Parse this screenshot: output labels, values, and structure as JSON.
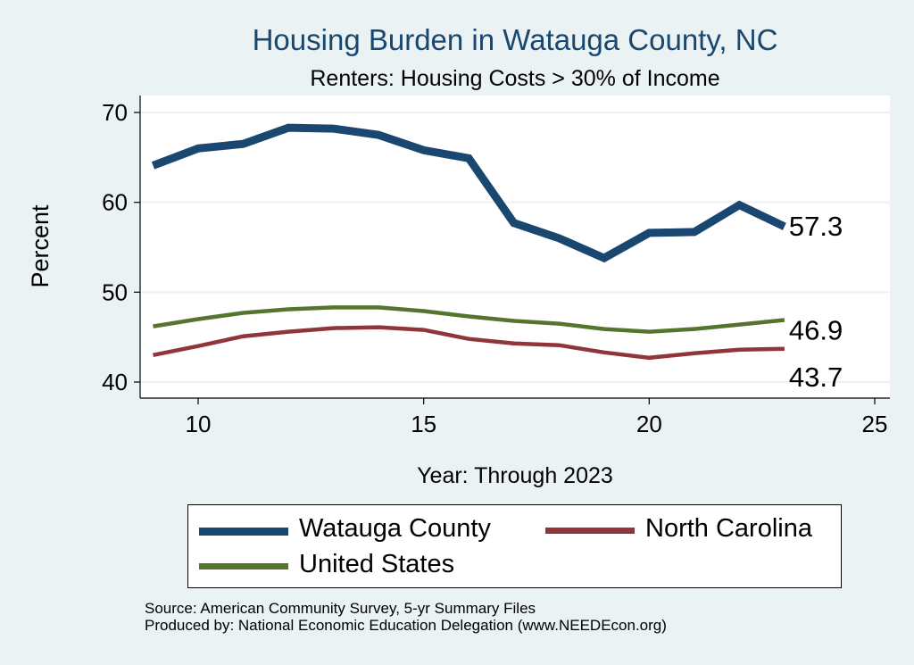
{
  "chart_data": {
    "type": "line",
    "title": "Housing Burden in Watauga County, NC",
    "subtitle": "Renters: Housing Costs > 30% of Income",
    "xlabel": "Year: Through 2023",
    "ylabel": "Percent",
    "xlim": [
      8.7,
      25
    ],
    "ylim": [
      38.5,
      71
    ],
    "xticks": [
      10,
      15,
      20,
      25
    ],
    "yticks": [
      40,
      50,
      60,
      70
    ],
    "grid": true,
    "x": [
      9,
      10,
      11,
      12,
      13,
      14,
      15,
      16,
      17,
      18,
      19,
      20,
      21,
      22,
      23
    ],
    "series": [
      {
        "name": "Watauga County",
        "color": "#1a476f",
        "values": [
          64.1,
          66.0,
          66.5,
          68.3,
          68.2,
          67.5,
          65.8,
          64.9,
          57.7,
          56.0,
          53.8,
          56.6,
          56.7,
          59.7,
          57.3
        ],
        "end_label": "57.3"
      },
      {
        "name": "United States",
        "color": "#55752f",
        "values": [
          46.2,
          47.0,
          47.7,
          48.1,
          48.3,
          48.3,
          47.9,
          47.3,
          46.8,
          46.5,
          45.9,
          45.6,
          45.9,
          46.4,
          46.9
        ],
        "end_label": "46.9"
      },
      {
        "name": "North Carolina",
        "color": "#90353b",
        "values": [
          43.0,
          44.0,
          45.1,
          45.6,
          46.0,
          46.1,
          45.8,
          44.8,
          44.3,
          44.1,
          43.3,
          42.7,
          43.2,
          43.6,
          43.7
        ],
        "end_label": "43.7"
      }
    ],
    "legend": {
      "placement": "bottom",
      "items": [
        {
          "name": "Watauga County",
          "color": "#1a476f"
        },
        {
          "name": "North Carolina",
          "color": "#90353b"
        },
        {
          "name": "United States",
          "color": "#55752f"
        }
      ]
    }
  },
  "source": {
    "line1": "Source: American Community Survey, 5-yr Summary Files",
    "line2": "Produced by: National Economic Education Delegation (www.NEEDEcon.org)"
  }
}
